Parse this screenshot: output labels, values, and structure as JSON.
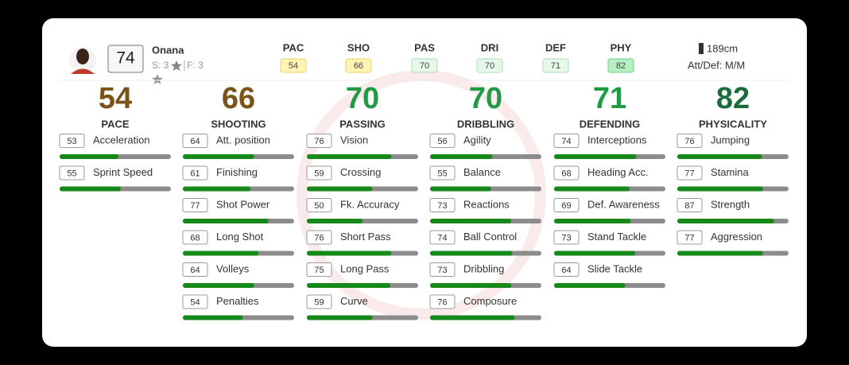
{
  "player": {
    "name": "Onana",
    "overall": 74,
    "skill": "S: 3",
    "foot": "F: 3",
    "height": "189cm",
    "work_rate": "Att/Def: M/M"
  },
  "summary": [
    {
      "label": "PAC",
      "value": 54,
      "color": "#fff4b3",
      "border": "#e6d36a"
    },
    {
      "label": "SHO",
      "value": 66,
      "color": "#fff4b3",
      "border": "#e6d36a"
    },
    {
      "label": "PAS",
      "value": 70,
      "color": "#e6f8e9",
      "border": "#a8dfb3"
    },
    {
      "label": "DRI",
      "value": 70,
      "color": "#e6f8e9",
      "border": "#a8dfb3"
    },
    {
      "label": "DEF",
      "value": 71,
      "color": "#e6f8e9",
      "border": "#a8dfb3"
    },
    {
      "label": "PHY",
      "value": 82,
      "color": "#b8efc3",
      "border": "#6fcf85"
    }
  ],
  "columns": [
    {
      "value": 54,
      "label": "PACE",
      "color": "#7a5418",
      "stats": [
        {
          "name": "Acceleration",
          "value": 53
        },
        {
          "name": "Sprint Speed",
          "value": 55
        }
      ]
    },
    {
      "value": 66,
      "label": "SHOOTING",
      "color": "#7a5418",
      "stats": [
        {
          "name": "Att. position",
          "value": 64
        },
        {
          "name": "Finishing",
          "value": 61
        },
        {
          "name": "Shot Power",
          "value": 77
        },
        {
          "name": "Long Shot",
          "value": 68
        },
        {
          "name": "Volleys",
          "value": 64
        },
        {
          "name": "Penalties",
          "value": 54
        }
      ]
    },
    {
      "value": 70,
      "label": "PASSING",
      "color": "#219a45",
      "stats": [
        {
          "name": "Vision",
          "value": 76
        },
        {
          "name": "Crossing",
          "value": 59
        },
        {
          "name": "Fk. Accuracy",
          "value": 50
        },
        {
          "name": "Short Pass",
          "value": 76
        },
        {
          "name": "Long Pass",
          "value": 75
        },
        {
          "name": "Curve",
          "value": 59
        }
      ]
    },
    {
      "value": 70,
      "label": "DRIBBLING",
      "color": "#219a45",
      "stats": [
        {
          "name": "Agility",
          "value": 56
        },
        {
          "name": "Balance",
          "value": 55
        },
        {
          "name": "Reactions",
          "value": 73
        },
        {
          "name": "Ball Control",
          "value": 74
        },
        {
          "name": "Dribbling",
          "value": 73
        },
        {
          "name": "Composure",
          "value": 76
        }
      ]
    },
    {
      "value": 71,
      "label": "DEFENDING",
      "color": "#219a45",
      "stats": [
        {
          "name": "Interceptions",
          "value": 74
        },
        {
          "name": "Heading Acc.",
          "value": 68
        },
        {
          "name": "Def. Awareness",
          "value": 69
        },
        {
          "name": "Stand Tackle",
          "value": 73
        },
        {
          "name": "Slide Tackle",
          "value": 64
        }
      ]
    },
    {
      "value": 82,
      "label": "PHYSICALITY",
      "color": "#1c6b3b",
      "stats": [
        {
          "name": "Jumping",
          "value": 76
        },
        {
          "name": "Stamina",
          "value": 77
        },
        {
          "name": "Strength",
          "value": 87
        },
        {
          "name": "Aggression",
          "value": 77
        }
      ]
    }
  ]
}
